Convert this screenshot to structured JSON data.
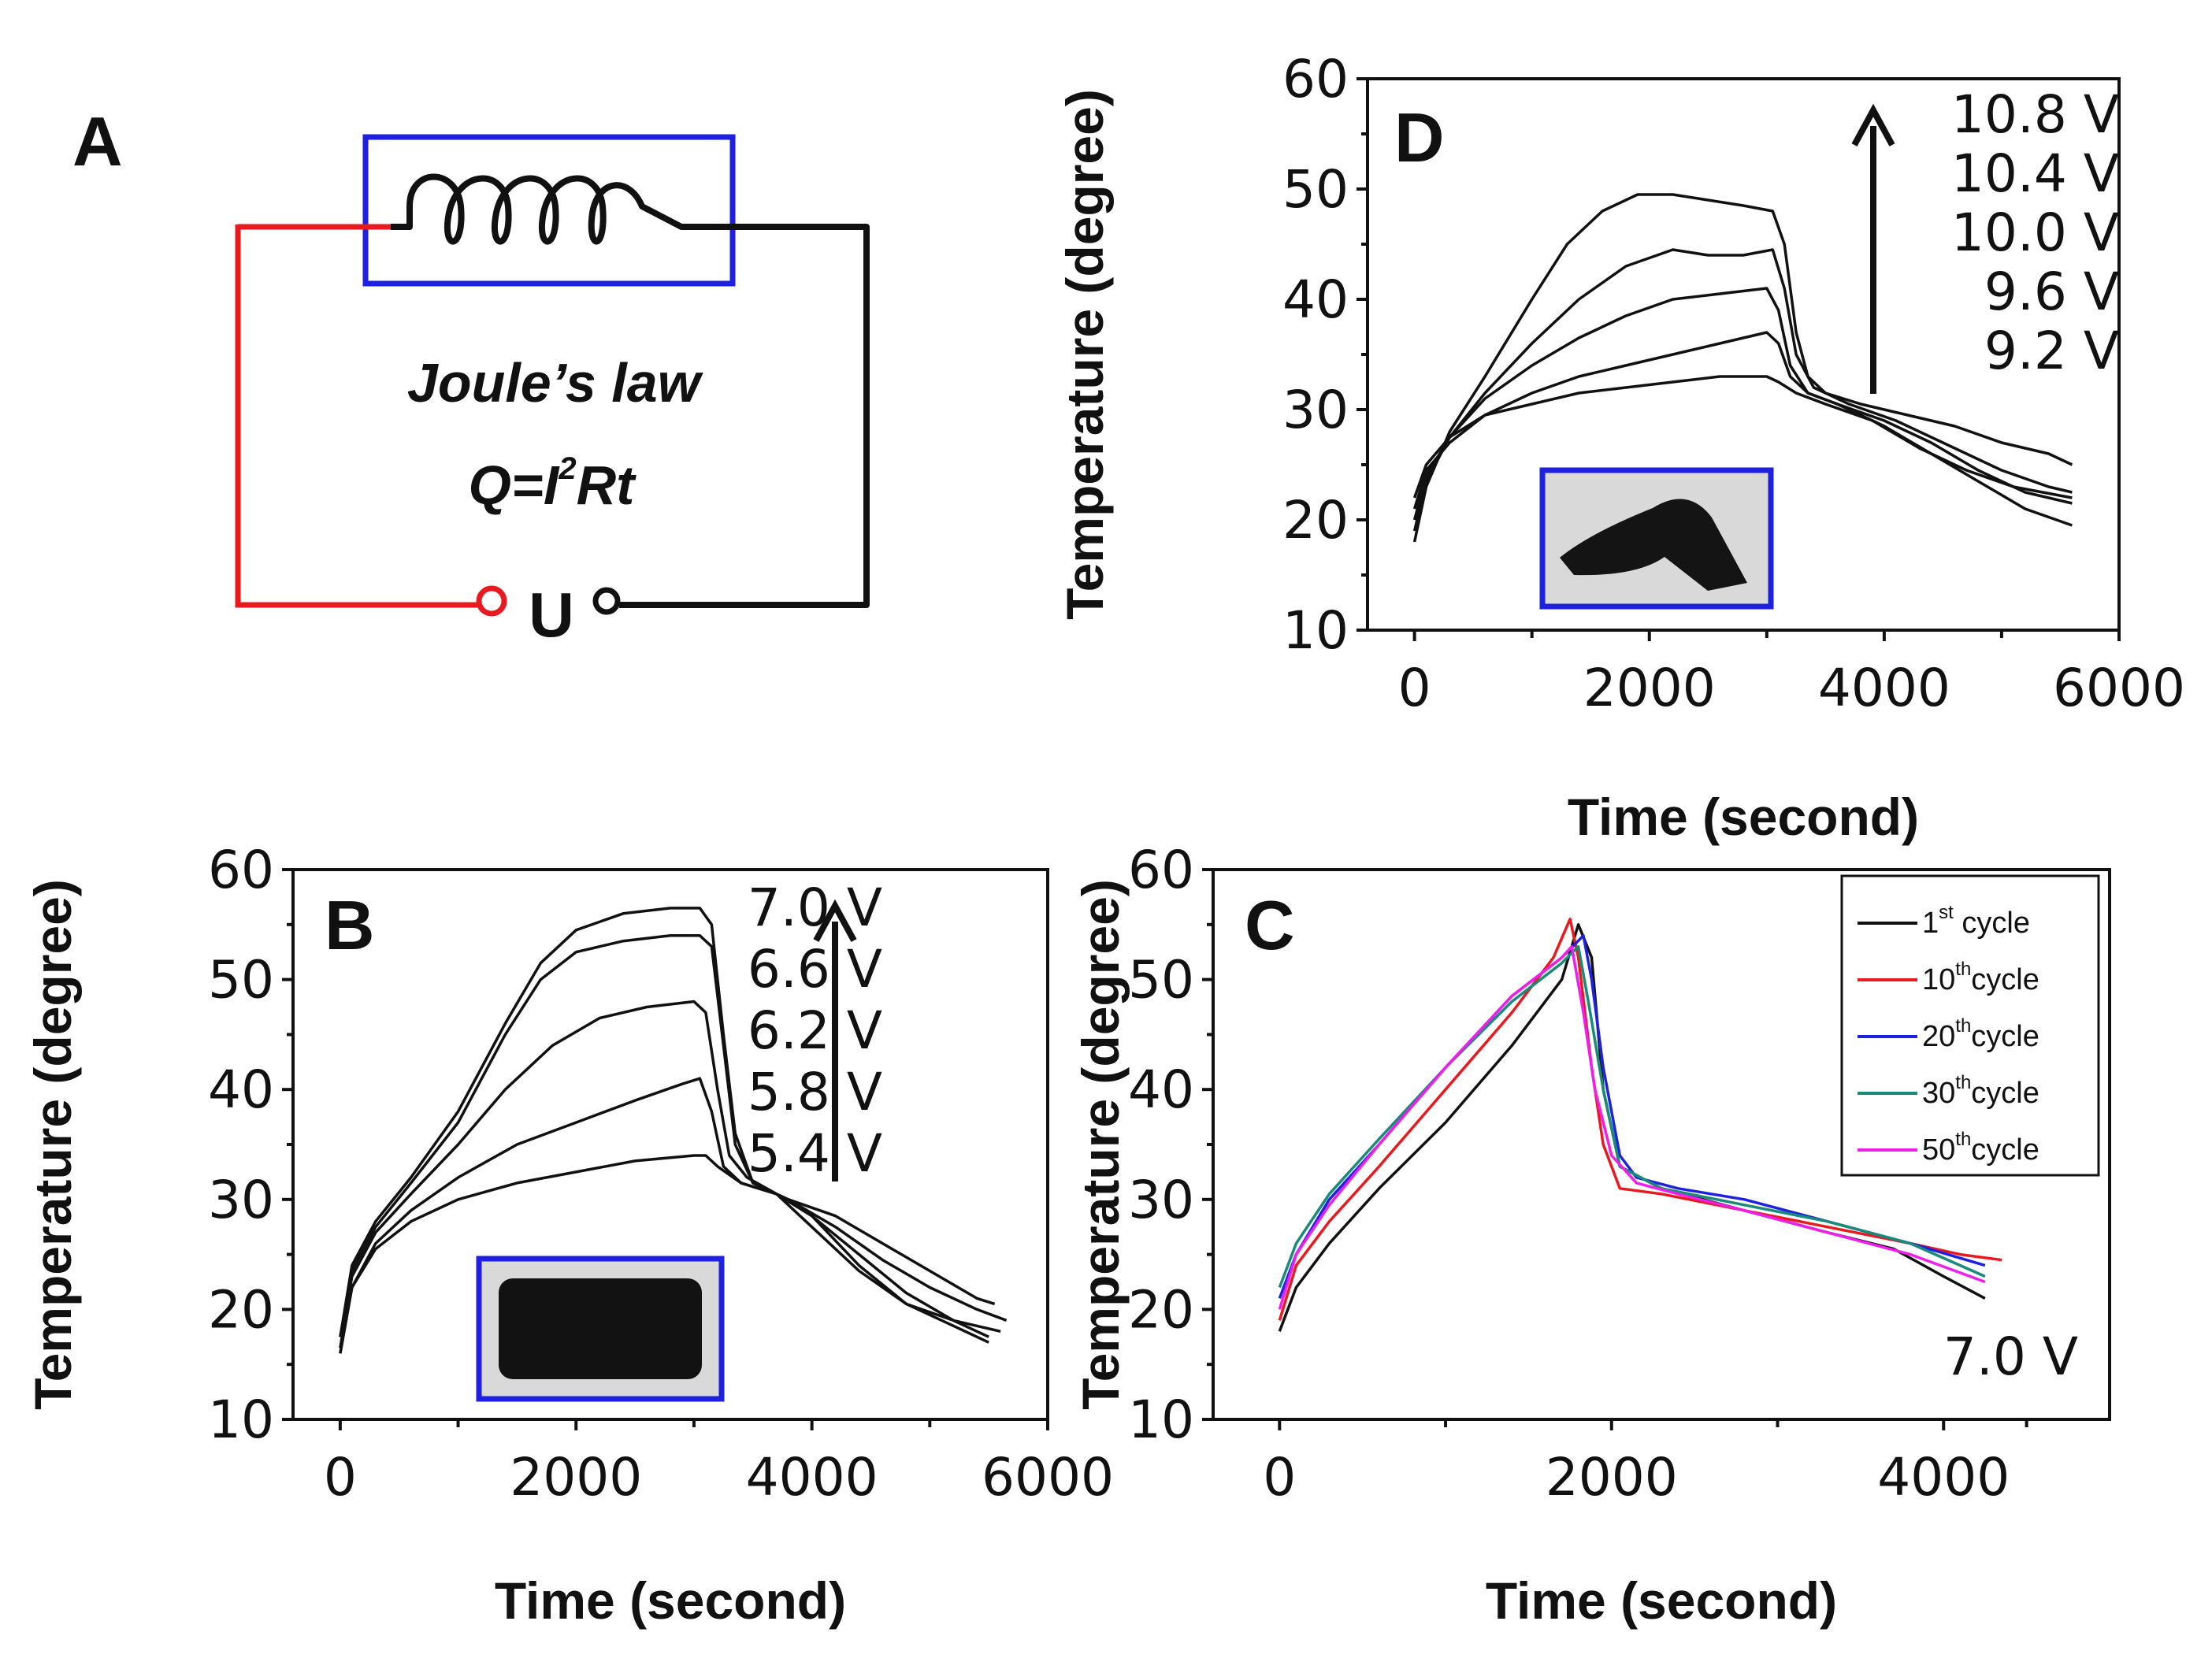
{
  "figure": {
    "panel_labels": {
      "A": "A",
      "B": "B",
      "C": "C",
      "D": "D"
    }
  },
  "circuit": {
    "law_name": "Joule’s law",
    "formula_q": "Q=I",
    "formula_sup": "2",
    "formula_rt": "Rt",
    "source_label": "U",
    "colors": {
      "positive_wire": "#e8191f",
      "wire": "#111111",
      "frame": "#1e22e0"
    }
  },
  "chart_data": [
    {
      "panel": "B",
      "type": "line",
      "xlabel": "Time (second)",
      "ylabel": "Temperature (degree)",
      "xlim": [
        -400,
        6000
      ],
      "ylim": [
        10,
        60
      ],
      "xticks": [
        0,
        2000,
        4000,
        6000
      ],
      "yticks": [
        10,
        20,
        30,
        40,
        50,
        60
      ],
      "grid": false,
      "arrow": "up",
      "inset": {
        "shape": "block",
        "frame_color": "#1e22e0"
      },
      "voltage_labels": [
        "7.0 V",
        "6.6 V",
        "6.2 V",
        "5.8 V",
        "5.4 V"
      ],
      "series": [
        {
          "name": "7.0 V",
          "color": "#111111",
          "x": [
            0,
            100,
            300,
            600,
            1000,
            1400,
            1700,
            2000,
            2400,
            2800,
            3050,
            3150,
            3250,
            3350,
            3500,
            3800,
            4200,
            4600,
            5000,
            5400,
            5550
          ],
          "y": [
            17.5,
            24,
            28,
            32,
            38,
            46,
            51.5,
            54.5,
            56,
            56.5,
            56.5,
            55,
            45,
            36,
            31.5,
            30,
            28.5,
            26,
            23.5,
            21,
            20.5
          ]
        },
        {
          "name": "6.6 V",
          "color": "#111111",
          "x": [
            0,
            100,
            300,
            600,
            1000,
            1400,
            1700,
            2000,
            2400,
            2800,
            3050,
            3150,
            3250,
            3350,
            3500,
            3800,
            4200,
            4600,
            5000,
            5400,
            5650
          ],
          "y": [
            17.5,
            23.5,
            27.5,
            31.5,
            37,
            45,
            50,
            52.5,
            53.5,
            54,
            54,
            53,
            44,
            35,
            31.5,
            30,
            27.5,
            24.5,
            22,
            20,
            19
          ]
        },
        {
          "name": "6.2 V",
          "color": "#111111",
          "x": [
            0,
            100,
            300,
            600,
            1000,
            1400,
            1800,
            2200,
            2600,
            3000,
            3100,
            3200,
            3300,
            3450,
            3700,
            4000,
            4400,
            4800,
            5200,
            5600
          ],
          "y": [
            16.5,
            23,
            27,
            30.5,
            35,
            40,
            44,
            46.5,
            47.5,
            48,
            47,
            40,
            34,
            32,
            30.5,
            27.5,
            23.5,
            20.5,
            19,
            18
          ]
        },
        {
          "name": "5.8 V",
          "color": "#111111",
          "x": [
            0,
            100,
            300,
            600,
            1000,
            1500,
            2000,
            2500,
            2900,
            3050,
            3150,
            3250,
            3400,
            3700,
            4000,
            4400,
            4800,
            5200,
            5500
          ],
          "y": [
            16,
            22,
            26,
            29,
            32,
            35,
            37,
            39,
            40.5,
            41,
            38,
            33,
            31.5,
            30.5,
            28.5,
            25,
            21.5,
            19,
            17.5
          ]
        },
        {
          "name": "5.4 V",
          "color": "#111111",
          "x": [
            0,
            100,
            300,
            600,
            1000,
            1500,
            2000,
            2500,
            3000,
            3100,
            3200,
            3400,
            3700,
            4000,
            4400,
            4800,
            5200,
            5500
          ],
          "y": [
            16,
            22,
            25.5,
            28,
            30,
            31.5,
            32.5,
            33.5,
            34,
            34,
            33,
            31.5,
            30.5,
            28.5,
            24,
            20.5,
            18.5,
            17
          ]
        }
      ]
    },
    {
      "panel": "C",
      "type": "line",
      "xlabel": "Time (second)",
      "ylabel": "Temperature (degree)",
      "xlim": [
        -400,
        5000
      ],
      "ylim": [
        10,
        60
      ],
      "xticks": [
        0,
        2000,
        4000
      ],
      "yticks": [
        10,
        20,
        30,
        40,
        50,
        60
      ],
      "grid": false,
      "legend_position": "top-right",
      "annotation": "7.0 V",
      "series": [
        {
          "name_main": "1",
          "name_sup": "st",
          "name_tail": " cycle",
          "color": "#111111",
          "x": [
            0,
            100,
            300,
            600,
            1000,
            1400,
            1700,
            1800,
            1880,
            1950,
            2050,
            2300,
            2800,
            3300,
            3700,
            4000,
            4250
          ],
          "y": [
            18,
            22,
            26,
            31,
            37,
            44,
            50,
            55,
            52,
            40,
            33,
            31,
            29,
            27,
            25.5,
            23,
            21
          ]
        },
        {
          "name_main": "10",
          "name_sup": "th",
          "name_tail": "cycle",
          "color": "#e8191f",
          "x": [
            0,
            100,
            300,
            600,
            1000,
            1400,
            1650,
            1750,
            1800,
            1880,
            1950,
            2050,
            2300,
            2800,
            3300,
            3800,
            4100,
            4350
          ],
          "y": [
            19,
            24,
            28,
            33,
            40,
            47,
            52,
            55.5,
            52,
            42,
            35,
            31,
            30.5,
            29,
            27.5,
            26,
            25,
            24.5
          ]
        },
        {
          "name_main": "20",
          "name_sup": "th",
          "name_tail": "cycle",
          "color": "#1e22e0",
          "x": [
            0,
            100,
            300,
            600,
            1000,
            1400,
            1700,
            1830,
            1880,
            1950,
            2050,
            2150,
            2400,
            2800,
            3300,
            3800,
            4250
          ],
          "y": [
            21,
            25,
            30,
            35,
            42,
            48.5,
            52,
            54,
            50,
            42,
            34,
            32,
            31,
            30,
            28,
            26,
            24
          ]
        },
        {
          "name_main": "30",
          "name_sup": "th",
          "name_tail": "cycle",
          "color": "#1a8a7a",
          "x": [
            0,
            100,
            300,
            600,
            1000,
            1400,
            1700,
            1800,
            1860,
            1950,
            2050,
            2300,
            2800,
            3300,
            3800,
            4250
          ],
          "y": [
            22,
            26,
            30.5,
            35.5,
            42,
            48,
            51.5,
            53,
            48,
            40,
            33,
            31,
            29.5,
            28,
            26,
            23
          ]
        },
        {
          "name_main": "50",
          "name_sup": "th",
          "name_tail": "cycle",
          "color": "#ee1fe8",
          "x": [
            0,
            100,
            300,
            600,
            1000,
            1400,
            1700,
            1760,
            1830,
            1900,
            2000,
            2150,
            2400,
            2800,
            3300,
            3800,
            4250
          ],
          "y": [
            20,
            25,
            29.5,
            35,
            42,
            48.5,
            52,
            53,
            47,
            40,
            34,
            31.5,
            30.5,
            29,
            27,
            25,
            22.5
          ]
        }
      ]
    },
    {
      "panel": "D",
      "type": "line",
      "xlabel": "Time (second)",
      "ylabel": "Temperature (degree)",
      "xlim": [
        -400,
        6000
      ],
      "ylim": [
        10,
        60
      ],
      "xticks": [
        0,
        2000,
        4000,
        6000
      ],
      "yticks": [
        10,
        20,
        30,
        40,
        50,
        60
      ],
      "grid": false,
      "arrow": "up",
      "inset": {
        "shape": "v-block",
        "frame_color": "#1e22e0"
      },
      "voltage_labels": [
        "10.8 V",
        "10.4 V",
        "10.0 V",
        "9.6 V",
        "9.2 V"
      ],
      "series": [
        {
          "name": "10.8 V",
          "color": "#111111",
          "x": [
            0,
            100,
            300,
            600,
            1000,
            1300,
            1600,
            1900,
            2200,
            2500,
            2800,
            3050,
            3150,
            3250,
            3350,
            3500,
            3800,
            4200,
            4600,
            5000,
            5400,
            5600
          ],
          "y": [
            18,
            23,
            28,
            33,
            40,
            45,
            48,
            49.5,
            49.5,
            49,
            48.5,
            48,
            45,
            37,
            33,
            31.5,
            30.5,
            29.5,
            28.5,
            27,
            26,
            25
          ]
        },
        {
          "name": "10.4 V",
          "color": "#111111",
          "x": [
            0,
            100,
            300,
            600,
            1000,
            1400,
            1800,
            2200,
            2500,
            2800,
            3050,
            3150,
            3250,
            3400,
            3700,
            4100,
            4500,
            5000,
            5400,
            5600
          ],
          "y": [
            19,
            23.5,
            27.5,
            31.5,
            36,
            40,
            43,
            44.5,
            44,
            44,
            44.5,
            41,
            35,
            32,
            30.5,
            29,
            27,
            24.5,
            23,
            22.5
          ]
        },
        {
          "name": "10.0 V",
          "color": "#111111",
          "x": [
            0,
            100,
            300,
            600,
            1000,
            1400,
            1800,
            2200,
            2600,
            3000,
            3100,
            3200,
            3350,
            3600,
            4000,
            4400,
            4800,
            5200,
            5600
          ],
          "y": [
            20,
            24,
            27.5,
            31,
            34,
            36.5,
            38.5,
            40,
            40.5,
            41,
            39,
            34,
            31.5,
            30.5,
            29,
            27,
            24.5,
            22.5,
            21.5
          ]
        },
        {
          "name": "9.6 V",
          "color": "#111111",
          "x": [
            0,
            100,
            300,
            600,
            1000,
            1400,
            1800,
            2200,
            2600,
            3000,
            3100,
            3200,
            3350,
            3600,
            4000,
            4400,
            4800,
            5200,
            5600
          ],
          "y": [
            21,
            24.5,
            27,
            29.5,
            31.5,
            33,
            34,
            35,
            36,
            37,
            36,
            33,
            31.5,
            30.5,
            28.5,
            26,
            23.5,
            21,
            19.5
          ]
        },
        {
          "name": "9.2 V",
          "color": "#111111",
          "x": [
            0,
            100,
            300,
            600,
            1000,
            1400,
            1800,
            2200,
            2600,
            3000,
            3100,
            3250,
            3500,
            3900,
            4300,
            4700,
            5100,
            5600
          ],
          "y": [
            22,
            25,
            27.5,
            29.5,
            30.5,
            31.5,
            32,
            32.5,
            33,
            33,
            32.5,
            31.5,
            30.5,
            29,
            26.5,
            24.5,
            23,
            22
          ]
        }
      ]
    }
  ]
}
